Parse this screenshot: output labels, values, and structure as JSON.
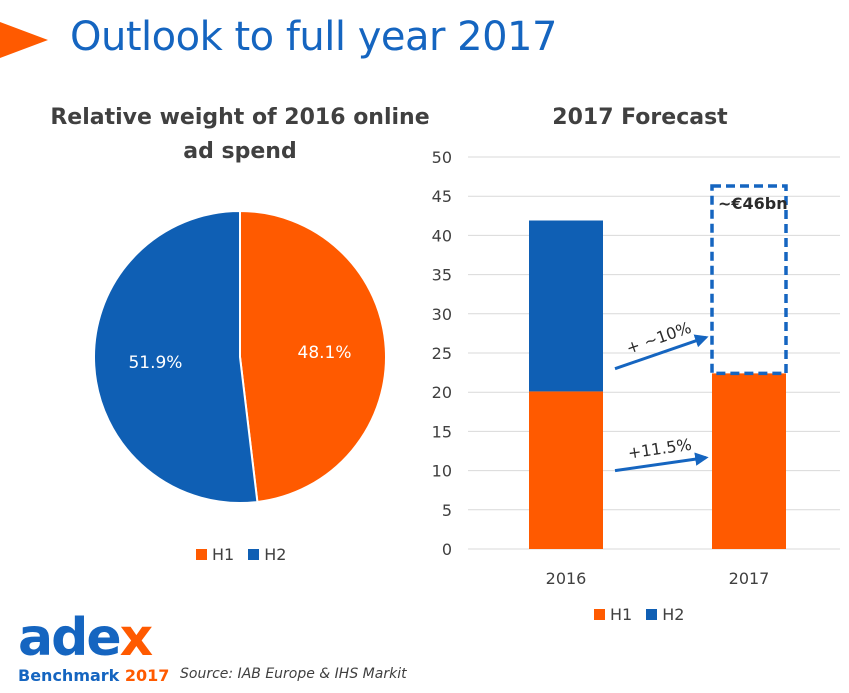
{
  "page": {
    "title": "Outlook to full year 2017",
    "source": "Source: IAB Europe & IHS Markit"
  },
  "logo": {
    "word_main": "ade",
    "word_x": "x",
    "sub_main": "Benchmark ",
    "sub_year": "2017"
  },
  "colors": {
    "h1": "#FF5A00",
    "h2": "#0F5FB4",
    "accent_blue": "#1565C0",
    "text": "#404040",
    "grid": "#D9D9D9"
  },
  "chart_data": [
    {
      "type": "pie",
      "title": "Relative weight of 2016 online ad spend",
      "title_lines": [
        "Relative weight of 2016 online",
        "ad spend"
      ],
      "slices": [
        {
          "name": "H1",
          "value": 48.1,
          "label": "48.1%"
        },
        {
          "name": "H2",
          "value": 51.9,
          "label": "51.9%"
        }
      ],
      "legend": [
        "H1",
        "H2"
      ],
      "legend_position": "bottom"
    },
    {
      "type": "bar",
      "stacked": true,
      "title": "2017 Forecast",
      "categories": [
        "2016",
        "2017"
      ],
      "series": [
        {
          "name": "H1",
          "values": [
            20.1,
            22.4
          ]
        },
        {
          "name": "H2",
          "values": [
            21.8,
            null
          ]
        }
      ],
      "ylim": [
        0,
        50
      ],
      "yticks": [
        0,
        5,
        10,
        15,
        20,
        25,
        30,
        35,
        40,
        45,
        50
      ],
      "grid": true,
      "legend": [
        "H1",
        "H2"
      ],
      "legend_position": "bottom",
      "forecast_total": {
        "category": "2017",
        "value": 46.3,
        "label": "~€46bn",
        "style": "dashed-outline"
      },
      "annotations": [
        {
          "text": "+11.5%",
          "from": {
            "category": "2016",
            "value": 10.0
          },
          "to": {
            "category": "2017",
            "value": 10.0
          }
        },
        {
          "text": "+ ~10%",
          "from": {
            "category": "2016",
            "value": 23.0
          },
          "to": {
            "category": "2017",
            "value": 27.0
          }
        }
      ]
    }
  ]
}
